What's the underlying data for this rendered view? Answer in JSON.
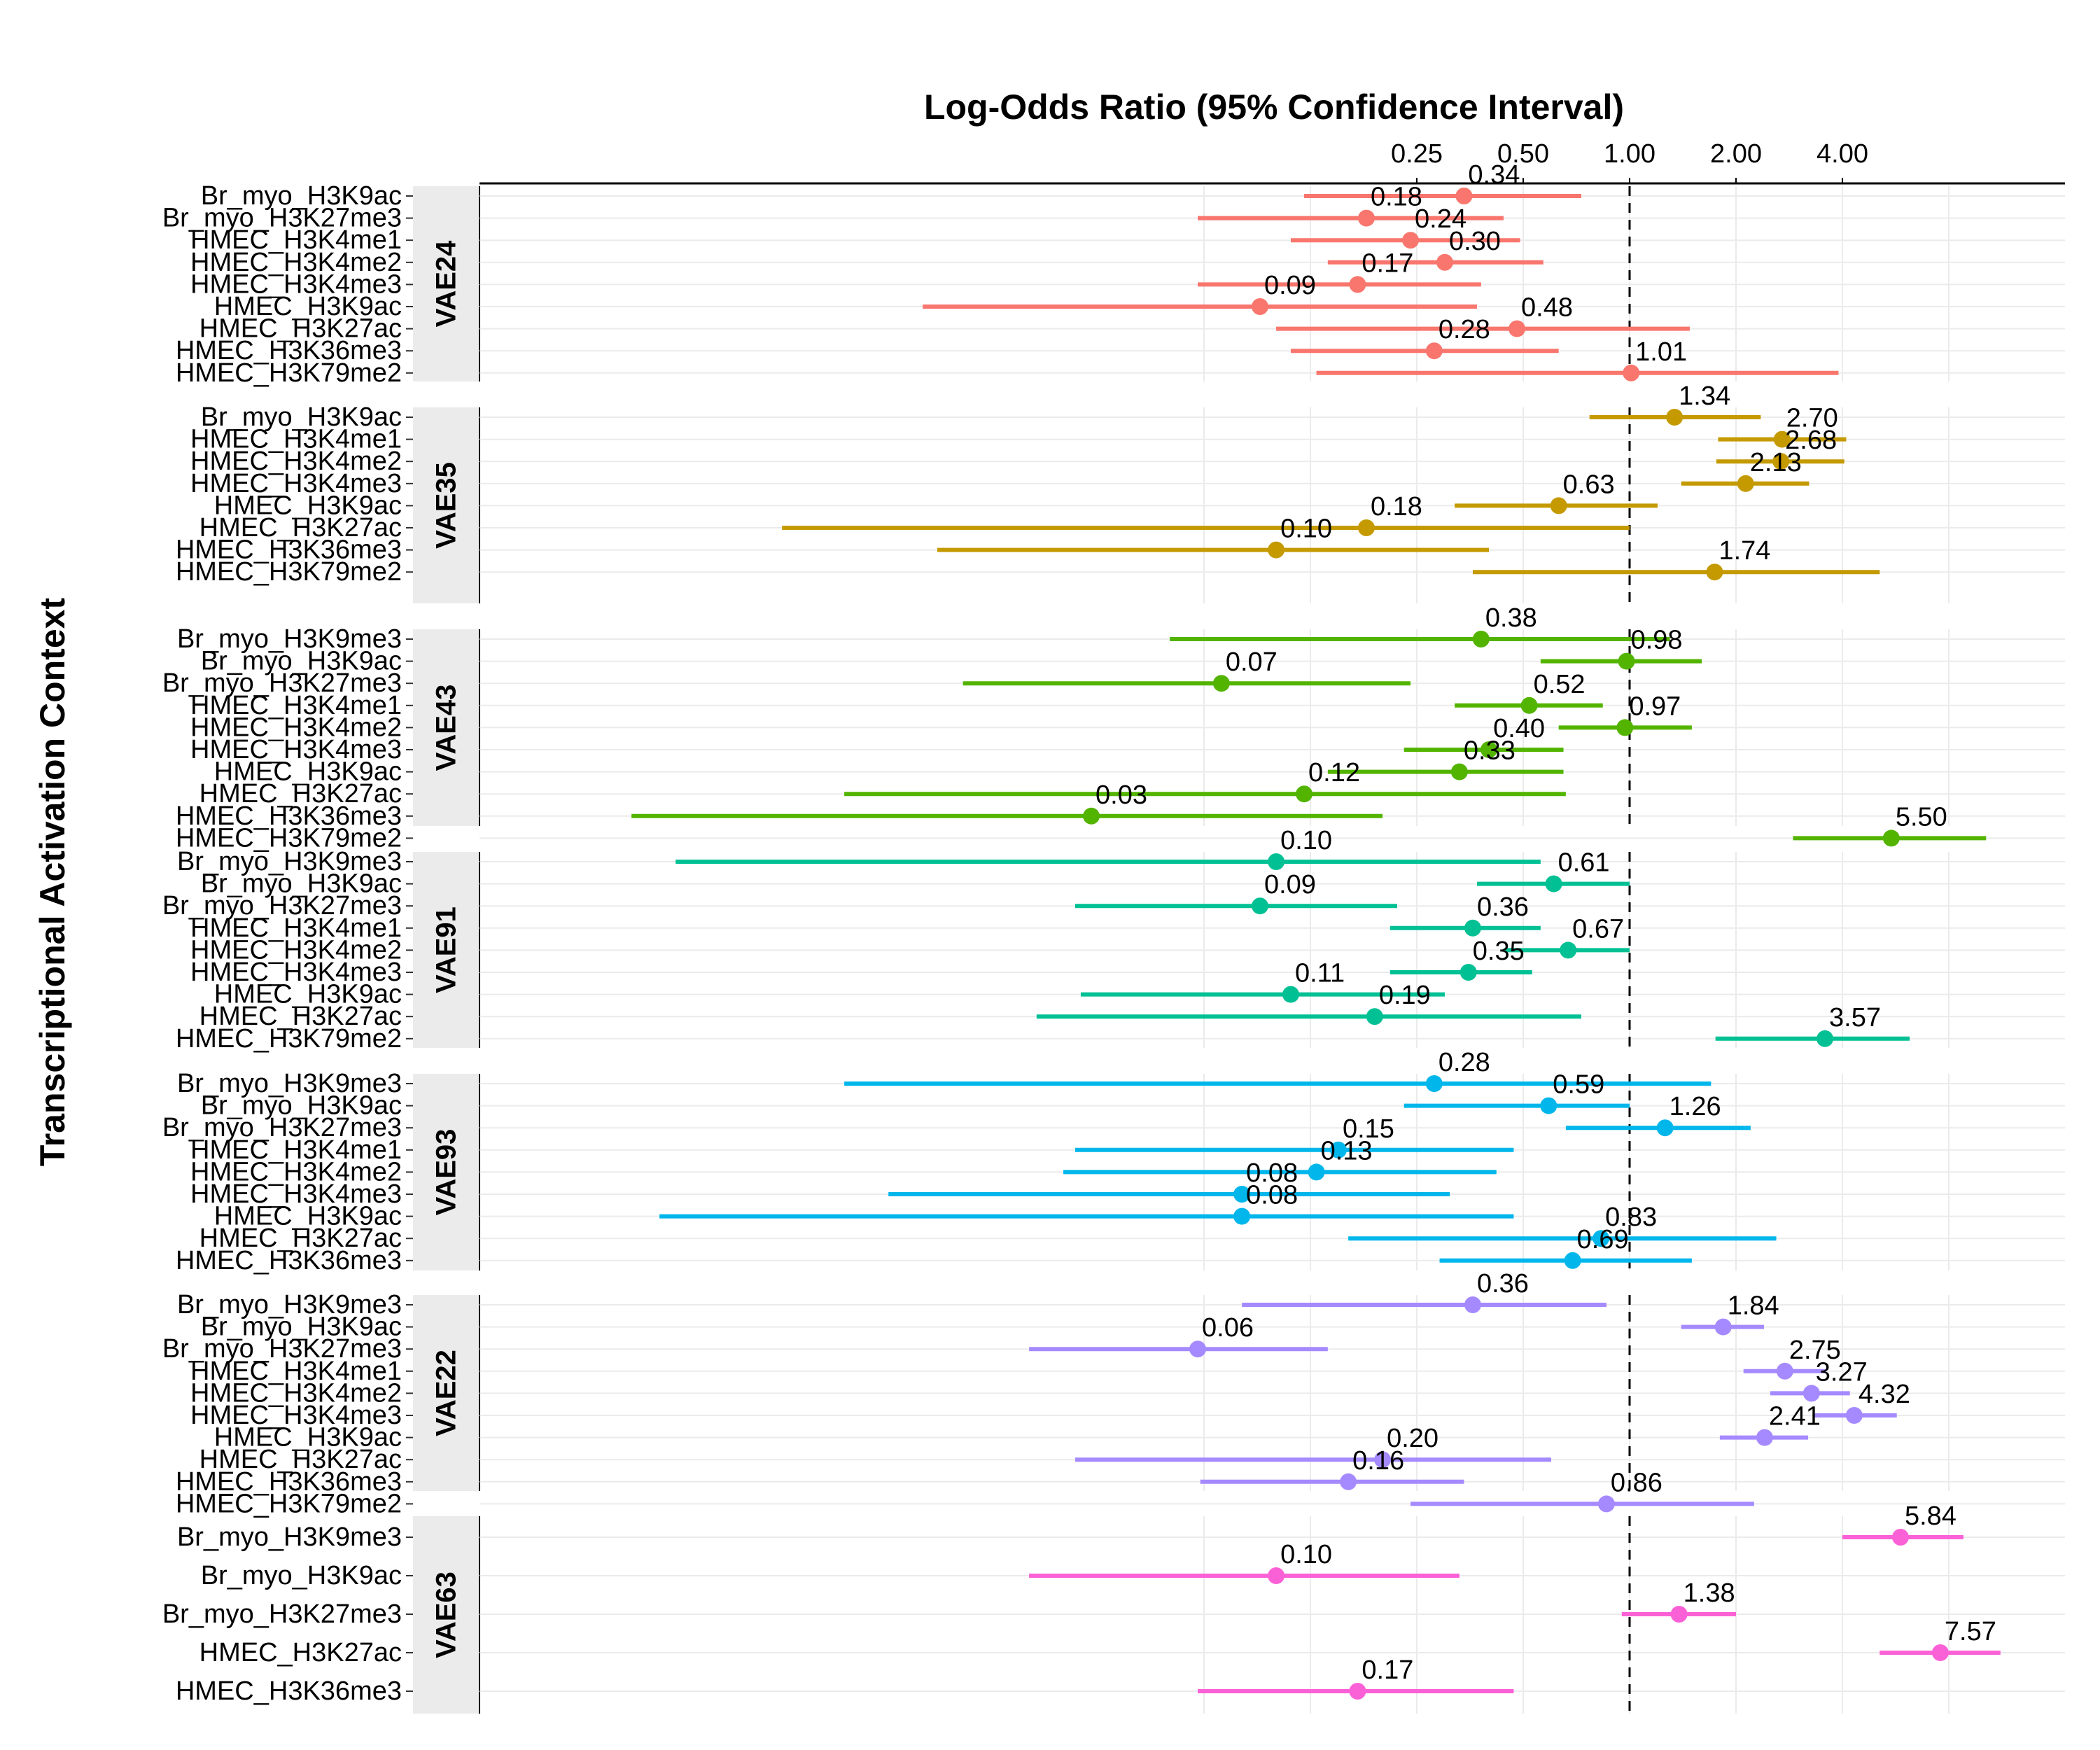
{
  "chart_data": {
    "type": "forest",
    "title": "Log-Odds Ratio (95% Confidence Interval)",
    "ylabel": "Transcriptional Activation Context",
    "x_scale": "log2",
    "x_ticks": [
      0.25,
      0.5,
      1.0,
      2.0,
      4.0
    ],
    "x_tick_labels": [
      "0.25",
      "0.50",
      "1.00",
      "2.00",
      "4.00"
    ],
    "reference_line": 1.0,
    "panels": [
      {
        "name": "VAE24",
        "color": "#F8766D",
        "rows": [
          {
            "label": "Br_myo_H3K9ac",
            "or": 0.34,
            "lo": 0.12,
            "hi": 0.73,
            "text": "0.34"
          },
          {
            "label": "Br_myo_H3K27me3",
            "or": 0.18,
            "lo": 0.06,
            "hi": 0.44,
            "text": "0.18"
          },
          {
            "label": "HMEC_H3K4me1",
            "or": 0.24,
            "lo": 0.11,
            "hi": 0.49,
            "text": "0.24"
          },
          {
            "label": "HMEC_H3K4me2",
            "or": 0.3,
            "lo": 0.14,
            "hi": 0.57,
            "text": "0.30"
          },
          {
            "label": "HMEC_H3K4me3",
            "or": 0.17,
            "lo": 0.06,
            "hi": 0.38,
            "text": "0.17"
          },
          {
            "label": "HMEC_H3K9ac",
            "or": 0.09,
            "lo": 0.01,
            "hi": 0.37,
            "text": "0.09"
          },
          {
            "label": "HMEC_H3K27ac",
            "or": 0.48,
            "lo": 0.1,
            "hi": 1.48,
            "text": "0.48"
          },
          {
            "label": "HMEC_H3K36me3",
            "or": 0.28,
            "lo": 0.11,
            "hi": 0.63,
            "text": "0.28"
          },
          {
            "label": "HMEC_H3K79me2",
            "or": 1.01,
            "lo": 0.13,
            "hi": 3.9,
            "text": "1.01"
          }
        ]
      },
      {
        "name": "VAE35",
        "color": "#C49A00",
        "rows": [
          {
            "label": "Br_myo_H3K9ac",
            "or": 1.34,
            "lo": 0.77,
            "hi": 2.35,
            "text": "1.34"
          },
          {
            "label": "HMEC_H3K4me1",
            "or": 2.7,
            "lo": 1.78,
            "hi": 4.1,
            "text": "2.70"
          },
          {
            "label": "HMEC_H3K4me2",
            "or": 2.68,
            "lo": 1.76,
            "hi": 4.05,
            "text": "2.68"
          },
          {
            "label": "HMEC_H3K4me3",
            "or": 2.13,
            "lo": 1.4,
            "hi": 3.22,
            "text": "2.13"
          },
          {
            "label": "HMEC_H3K9ac",
            "or": 0.63,
            "lo": 0.32,
            "hi": 1.2,
            "text": "0.63"
          },
          {
            "label": "HMEC_H3K27ac",
            "or": 0.18,
            "lo": 0.004,
            "hi": 1.0,
            "text": "0.18"
          },
          {
            "label": "HMEC_H3K36me3",
            "or": 0.1,
            "lo": 0.011,
            "hi": 0.4,
            "text": "0.10"
          },
          {
            "label": "HMEC_H3K79me2",
            "or": 1.74,
            "lo": 0.36,
            "hi": 5.1,
            "text": "1.74"
          }
        ]
      },
      {
        "name": "VAE43",
        "color": "#53B400",
        "rows": [
          {
            "label": "Br_myo_H3K9me3",
            "or": 0.38,
            "lo": 0.05,
            "hi": 1.3,
            "text": "0.38"
          },
          {
            "label": "Br_myo_H3K9ac",
            "or": 0.98,
            "lo": 0.56,
            "hi": 1.6,
            "text": "0.98"
          },
          {
            "label": "Br_myo_H3K27me3",
            "or": 0.07,
            "lo": 0.013,
            "hi": 0.24,
            "text": "0.07"
          },
          {
            "label": "HMEC_H3K4me1",
            "or": 0.52,
            "lo": 0.32,
            "hi": 0.84,
            "text": "0.52"
          },
          {
            "label": "HMEC_H3K4me2",
            "or": 0.97,
            "lo": 0.63,
            "hi": 1.5,
            "text": "0.97"
          },
          {
            "label": "HMEC_H3K4me3",
            "or": 0.4,
            "lo": 0.23,
            "hi": 0.65,
            "text": "0.40"
          },
          {
            "label": "HMEC_H3K9ac",
            "or": 0.33,
            "lo": 0.14,
            "hi": 0.65,
            "text": "0.33"
          },
          {
            "label": "HMEC_H3K27ac",
            "or": 0.12,
            "lo": 0.006,
            "hi": 0.66,
            "text": "0.12"
          },
          {
            "label": "HMEC_H3K36me3",
            "or": 0.03,
            "lo": 0.0015,
            "hi": 0.2,
            "text": "0.03"
          },
          {
            "label": "HMEC_H3K79me2",
            "or": 5.5,
            "lo": 2.9,
            "hi": 10.2,
            "text": "5.50"
          }
        ]
      },
      {
        "name": "VAE91",
        "color": "#00C094",
        "rows": [
          {
            "label": "Br_myo_H3K9me3",
            "or": 0.1,
            "lo": 0.002,
            "hi": 0.56,
            "text": "0.10"
          },
          {
            "label": "Br_myo_H3K9ac",
            "or": 0.61,
            "lo": 0.37,
            "hi": 1.0,
            "text": "0.61"
          },
          {
            "label": "Br_myo_H3K27me3",
            "or": 0.09,
            "lo": 0.027,
            "hi": 0.22,
            "text": "0.09"
          },
          {
            "label": "HMEC_H3K4me1",
            "or": 0.36,
            "lo": 0.21,
            "hi": 0.56,
            "text": "0.36"
          },
          {
            "label": "HMEC_H3K4me2",
            "or": 0.67,
            "lo": 0.44,
            "hi": 1.0,
            "text": "0.67"
          },
          {
            "label": "HMEC_H3K4me3",
            "or": 0.35,
            "lo": 0.21,
            "hi": 0.53,
            "text": "0.35"
          },
          {
            "label": "HMEC_H3K9ac",
            "or": 0.11,
            "lo": 0.028,
            "hi": 0.3,
            "text": "0.11"
          },
          {
            "label": "HMEC_H3K27ac",
            "or": 0.19,
            "lo": 0.021,
            "hi": 0.73,
            "text": "0.19"
          },
          {
            "label": "HMEC_H3K79me2",
            "or": 3.57,
            "lo": 1.75,
            "hi": 6.2,
            "text": "3.57"
          }
        ]
      },
      {
        "name": "VAE93",
        "color": "#00B6EB",
        "rows": [
          {
            "label": "Br_myo_H3K9me3",
            "or": 0.28,
            "lo": 0.006,
            "hi": 1.7,
            "text": "0.28"
          },
          {
            "label": "Br_myo_H3K9ac",
            "or": 0.59,
            "lo": 0.23,
            "hi": 1.0,
            "text": "0.59"
          },
          {
            "label": "Br_myo_H3K27me3",
            "or": 1.26,
            "lo": 0.66,
            "hi": 2.2,
            "text": "1.26"
          },
          {
            "label": "HMEC_H3K4me1",
            "or": 0.15,
            "lo": 0.027,
            "hi": 0.47,
            "text": "0.15"
          },
          {
            "label": "HMEC_H3K4me2",
            "or": 0.13,
            "lo": 0.025,
            "hi": 0.42,
            "text": "0.13"
          },
          {
            "label": "HMEC_H3K4me3",
            "or": 0.08,
            "lo": 0.008,
            "hi": 0.31,
            "text": "0.08"
          },
          {
            "label": "HMEC_H3K9ac",
            "or": 0.08,
            "lo": 0.0018,
            "hi": 0.47,
            "text": "0.08"
          },
          {
            "label": "HMEC_H3K27ac",
            "or": 0.83,
            "lo": 0.16,
            "hi": 2.6,
            "text": "0.83"
          },
          {
            "label": "HMEC_H3K36me3",
            "or": 0.69,
            "lo": 0.29,
            "hi": 1.5,
            "text": "0.69"
          }
        ]
      },
      {
        "name": "VAE22",
        "color": "#A58AFF",
        "rows": [
          {
            "label": "Br_myo_H3K9me3",
            "or": 0.36,
            "lo": 0.08,
            "hi": 0.86,
            "text": "0.36"
          },
          {
            "label": "Br_myo_H3K9ac",
            "or": 1.84,
            "lo": 1.4,
            "hi": 2.4,
            "text": "1.84"
          },
          {
            "label": "Br_myo_H3K27me3",
            "or": 0.06,
            "lo": 0.02,
            "hi": 0.14,
            "text": "0.06"
          },
          {
            "label": "HMEC_H3K4me1",
            "or": 2.75,
            "lo": 2.1,
            "hi": 3.6,
            "text": "2.75"
          },
          {
            "label": "HMEC_H3K4me2",
            "or": 3.27,
            "lo": 2.5,
            "hi": 4.2,
            "text": "3.27"
          },
          {
            "label": "HMEC_H3K4me3",
            "or": 4.32,
            "lo": 3.3,
            "hi": 5.7,
            "text": "4.32"
          },
          {
            "label": "HMEC_H3K9ac",
            "or": 2.41,
            "lo": 1.8,
            "hi": 3.2,
            "text": "2.41"
          },
          {
            "label": "HMEC_H3K27ac",
            "or": 0.2,
            "lo": 0.027,
            "hi": 0.6,
            "text": "0.20"
          },
          {
            "label": "HMEC_H3K36me3",
            "or": 0.16,
            "lo": 0.061,
            "hi": 0.34,
            "text": "0.16"
          },
          {
            "label": "HMEC_H3K79me2",
            "or": 0.86,
            "lo": 0.24,
            "hi": 2.25,
            "text": "0.86"
          }
        ]
      },
      {
        "name": "VAE63",
        "color": "#FB61D7",
        "rows": [
          {
            "label": "Br_myo_H3K9me3",
            "or": 5.84,
            "lo": 4.0,
            "hi": 8.8,
            "text": "5.84"
          },
          {
            "label": "Br_myo_H3K9ac",
            "or": 0.1,
            "lo": 0.02,
            "hi": 0.33,
            "text": "0.10"
          },
          {
            "label": "Br_myo_H3K27me3",
            "or": 1.38,
            "lo": 0.95,
            "hi": 2.0,
            "text": "1.38"
          },
          {
            "label": "HMEC_H3K27ac",
            "or": 7.57,
            "lo": 5.1,
            "hi": 11.2,
            "text": "7.57"
          },
          {
            "label": "HMEC_H3K36me3",
            "or": 0.17,
            "lo": 0.06,
            "hi": 0.47,
            "text": "0.17"
          }
        ]
      }
    ]
  }
}
